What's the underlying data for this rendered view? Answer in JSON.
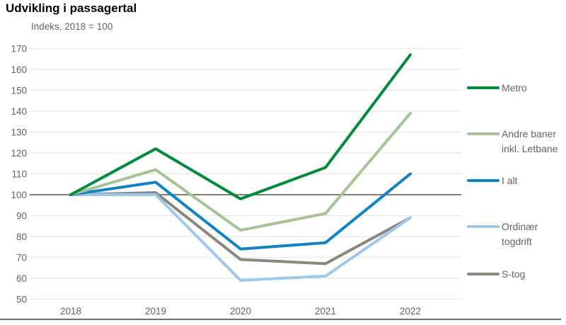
{
  "title": "Udvikling i passagertal",
  "subtitle": "Indeks, 2018 = 100",
  "chart_data": {
    "type": "line",
    "x": [
      2018,
      2019,
      2020,
      2021,
      2022
    ],
    "series": [
      {
        "name": "Metro",
        "label": "Metro",
        "color": "#008c3c",
        "values": [
          100,
          122,
          98,
          113,
          167
        ]
      },
      {
        "name": "Andre baner inkl. Letbane",
        "label": "Andre baner\ninkl. Letbane",
        "color": "#a5c496",
        "values": [
          100,
          112,
          83,
          91,
          139
        ]
      },
      {
        "name": "I alt",
        "label": "I alt",
        "color": "#0f82c8",
        "values": [
          100,
          106,
          74,
          77,
          110
        ]
      },
      {
        "name": "Ordinær togdrift",
        "label": "Ordinær\ntogdrift",
        "color": "#a0c8eb",
        "values": [
          100,
          100,
          59,
          61,
          89
        ]
      },
      {
        "name": "S-tog",
        "label": "S-tog",
        "color": "#8a887e",
        "values": [
          100,
          101,
          69,
          67,
          89
        ]
      }
    ],
    "ylim": [
      50,
      170
    ],
    "ytick_step": 10,
    "baseline": 100,
    "grid": true,
    "legend_position": "right"
  },
  "colors": {
    "gridline": "#e8e8e2",
    "baseline": "#55534a",
    "tick_label": "#64645f",
    "bottom_rule": "#55728f"
  }
}
